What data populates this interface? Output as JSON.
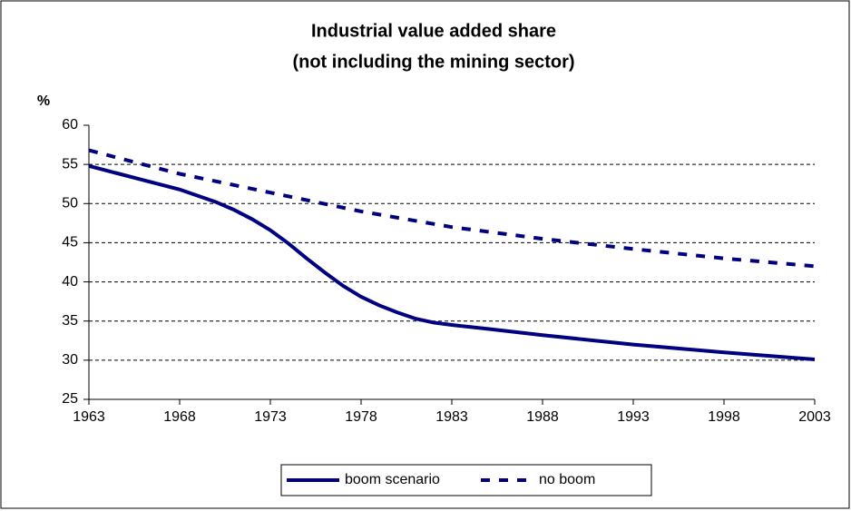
{
  "chart_data": {
    "type": "line",
    "title": [
      "Industrial value added share",
      "(not including the mining sector)"
    ],
    "y_label": "%",
    "series": [
      {
        "name": "boom scenario",
        "color": "#000080",
        "style": "solid",
        "x": [
          1963,
          1966,
          1968,
          1970,
          1971,
          1972,
          1973,
          1974,
          1975,
          1976,
          1977,
          1978,
          1979,
          1980,
          1981,
          1982,
          1983,
          1985,
          1988,
          1993,
          1998,
          2003
        ],
        "values": [
          54.8,
          53,
          51.8,
          50.2,
          49.2,
          48,
          46.6,
          44.9,
          43,
          41.2,
          39.5,
          38.1,
          37,
          36.1,
          35.3,
          34.8,
          34.5,
          34,
          33.2,
          32,
          31,
          30.1
        ]
      },
      {
        "name": "no boom",
        "color": "#000080",
        "style": "dashed",
        "x": [
          1963,
          1968,
          1973,
          1978,
          1983,
          1988,
          1993,
          1998,
          2003
        ],
        "values": [
          56.8,
          53.8,
          51.4,
          49,
          47,
          45.5,
          44.2,
          43,
          42
        ]
      }
    ],
    "xlim": [
      1963,
      2003
    ],
    "xticks": [
      1963,
      1968,
      1973,
      1978,
      1983,
      1988,
      1993,
      1998,
      2003
    ],
    "ylim": [
      25,
      60
    ],
    "yticks": [
      25,
      30,
      35,
      40,
      45,
      50,
      55,
      60
    ],
    "grid": true,
    "legend": "bottom"
  }
}
